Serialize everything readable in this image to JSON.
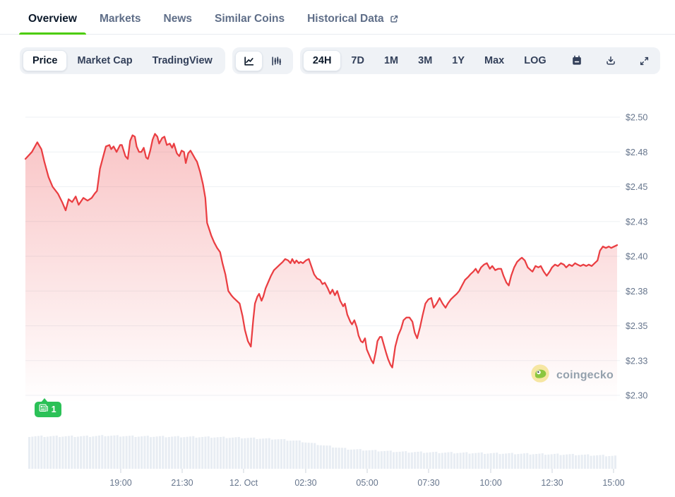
{
  "tabs": {
    "items": [
      {
        "label": "Overview",
        "active": true,
        "external": false
      },
      {
        "label": "Markets",
        "active": false,
        "external": false
      },
      {
        "label": "News",
        "active": false,
        "external": false
      },
      {
        "label": "Similar Coins",
        "active": false,
        "external": false
      },
      {
        "label": "Historical Data",
        "active": false,
        "external": true
      }
    ],
    "active_underline_color": "#4bcc00"
  },
  "toolbar": {
    "metric_buttons": [
      {
        "label": "Price",
        "active": true
      },
      {
        "label": "Market Cap",
        "active": false
      },
      {
        "label": "TradingView",
        "active": false
      }
    ],
    "chart_type_buttons": [
      {
        "icon": "line-chart-icon",
        "active": true
      },
      {
        "icon": "candlestick-chart-icon",
        "active": false
      }
    ],
    "range_buttons": [
      {
        "label": "24H",
        "active": true
      },
      {
        "label": "7D",
        "active": false
      },
      {
        "label": "1M",
        "active": false
      },
      {
        "label": "3M",
        "active": false
      },
      {
        "label": "1Y",
        "active": false
      },
      {
        "label": "Max",
        "active": false
      },
      {
        "label": "LOG",
        "active": false
      }
    ],
    "icon_buttons": [
      {
        "icon": "calendar-icon"
      },
      {
        "icon": "download-icon"
      },
      {
        "icon": "expand-icon"
      }
    ]
  },
  "watermark": {
    "label": "coingecko"
  },
  "chart_data": {
    "type": "line",
    "title": "",
    "grid": true,
    "legend": "none",
    "line_color": "#ea3e42",
    "area_fill_top": "rgba(234,62,66,0.30)",
    "area_fill_bottom": "rgba(234,62,66,0)",
    "ylim": [
      2.3,
      2.5
    ],
    "y_axis": {
      "side": "right",
      "tick_labels": [
        "$2.50",
        "$2.48",
        "$2.45",
        "$2.43",
        "$2.40",
        "$2.38",
        "$2.35",
        "$2.33",
        "$2.30"
      ],
      "tick_values": [
        2.5,
        2.475,
        2.45,
        2.425,
        2.4,
        2.375,
        2.35,
        2.325,
        2.3
      ]
    },
    "x_axis": {
      "ticks": [
        {
          "label": "19:00",
          "t": 0.1611
        },
        {
          "label": "21:30",
          "t": 0.2649
        },
        {
          "label": "12. Oct",
          "t": 0.3687
        },
        {
          "label": "02:30",
          "t": 0.4737
        },
        {
          "label": "05:00",
          "t": 0.5776
        },
        {
          "label": "07:30",
          "t": 0.6814
        },
        {
          "label": "10:00",
          "t": 0.7864
        },
        {
          "label": "12:30",
          "t": 0.8902
        },
        {
          "label": "15:00",
          "t": 0.994
        }
      ]
    },
    "annotations": [
      {
        "type": "news-flag",
        "label": "1",
        "t": 0.033
      }
    ],
    "series": [
      {
        "name": "Price (USD)",
        "points": [
          [
            0,
            2.47
          ],
          [
            0.011,
            2.475
          ],
          [
            0.02,
            2.482
          ],
          [
            0.027,
            2.477
          ],
          [
            0.032,
            2.468
          ],
          [
            0.039,
            2.457
          ],
          [
            0.046,
            2.45
          ],
          [
            0.055,
            2.445
          ],
          [
            0.062,
            2.439
          ],
          [
            0.068,
            2.433
          ],
          [
            0.073,
            2.441
          ],
          [
            0.079,
            2.439
          ],
          [
            0.085,
            2.443
          ],
          [
            0.09,
            2.437
          ],
          [
            0.098,
            2.442
          ],
          [
            0.105,
            2.44
          ],
          [
            0.112,
            2.442
          ],
          [
            0.117,
            2.445
          ],
          [
            0.121,
            2.447
          ],
          [
            0.126,
            2.463
          ],
          [
            0.131,
            2.471
          ],
          [
            0.136,
            2.479
          ],
          [
            0.142,
            2.48
          ],
          [
            0.145,
            2.477
          ],
          [
            0.149,
            2.479
          ],
          [
            0.154,
            2.475
          ],
          [
            0.16,
            2.48
          ],
          [
            0.163,
            2.48
          ],
          [
            0.169,
            2.472
          ],
          [
            0.173,
            2.47
          ],
          [
            0.177,
            2.483
          ],
          [
            0.181,
            2.487
          ],
          [
            0.185,
            2.486
          ],
          [
            0.188,
            2.479
          ],
          [
            0.192,
            2.475
          ],
          [
            0.196,
            2.475
          ],
          [
            0.2,
            2.478
          ],
          [
            0.204,
            2.471
          ],
          [
            0.207,
            2.47
          ],
          [
            0.211,
            2.476
          ],
          [
            0.215,
            2.484
          ],
          [
            0.219,
            2.488
          ],
          [
            0.223,
            2.486
          ],
          [
            0.226,
            2.481
          ],
          [
            0.231,
            2.485
          ],
          [
            0.235,
            2.486
          ],
          [
            0.239,
            2.48
          ],
          [
            0.244,
            2.481
          ],
          [
            0.248,
            2.478
          ],
          [
            0.251,
            2.481
          ],
          [
            0.256,
            2.474
          ],
          [
            0.26,
            2.472
          ],
          [
            0.264,
            2.476
          ],
          [
            0.268,
            2.475
          ],
          [
            0.271,
            2.467
          ],
          [
            0.275,
            2.474
          ],
          [
            0.279,
            2.476
          ],
          [
            0.283,
            2.473
          ],
          [
            0.287,
            2.47
          ],
          [
            0.29,
            2.468
          ],
          [
            0.295,
            2.461
          ],
          [
            0.3,
            2.452
          ],
          [
            0.304,
            2.442
          ],
          [
            0.307,
            2.424
          ],
          [
            0.311,
            2.419
          ],
          [
            0.314,
            2.415
          ],
          [
            0.319,
            2.41
          ],
          [
            0.324,
            2.406
          ],
          [
            0.329,
            2.403
          ],
          [
            0.333,
            2.395
          ],
          [
            0.338,
            2.387
          ],
          [
            0.343,
            2.375
          ],
          [
            0.348,
            2.372
          ],
          [
            0.352,
            2.37
          ],
          [
            0.357,
            2.368
          ],
          [
            0.362,
            2.366
          ],
          [
            0.367,
            2.357
          ],
          [
            0.371,
            2.347
          ],
          [
            0.376,
            2.339
          ],
          [
            0.381,
            2.335
          ],
          [
            0.385,
            2.354
          ],
          [
            0.388,
            2.366
          ],
          [
            0.392,
            2.371
          ],
          [
            0.395,
            2.373
          ],
          [
            0.399,
            2.368
          ],
          [
            0.402,
            2.371
          ],
          [
            0.406,
            2.377
          ],
          [
            0.411,
            2.382
          ],
          [
            0.415,
            2.386
          ],
          [
            0.42,
            2.39
          ],
          [
            0.425,
            2.392
          ],
          [
            0.43,
            2.394
          ],
          [
            0.435,
            2.396
          ],
          [
            0.439,
            2.398
          ],
          [
            0.444,
            2.397
          ],
          [
            0.448,
            2.395
          ],
          [
            0.451,
            2.398
          ],
          [
            0.455,
            2.395
          ],
          [
            0.458,
            2.397
          ],
          [
            0.462,
            2.395
          ],
          [
            0.465,
            2.396
          ],
          [
            0.469,
            2.395
          ],
          [
            0.474,
            2.397
          ],
          [
            0.479,
            2.398
          ],
          [
            0.483,
            2.393
          ],
          [
            0.488,
            2.387
          ],
          [
            0.493,
            2.384
          ],
          [
            0.498,
            2.383
          ],
          [
            0.502,
            2.38
          ],
          [
            0.506,
            2.381
          ],
          [
            0.511,
            2.377
          ],
          [
            0.515,
            2.373
          ],
          [
            0.519,
            2.376
          ],
          [
            0.523,
            2.372
          ],
          [
            0.527,
            2.375
          ],
          [
            0.532,
            2.368
          ],
          [
            0.537,
            2.364
          ],
          [
            0.54,
            2.366
          ],
          [
            0.544,
            2.358
          ],
          [
            0.549,
            2.353
          ],
          [
            0.552,
            2.351
          ],
          [
            0.556,
            2.354
          ],
          [
            0.56,
            2.349
          ],
          [
            0.563,
            2.343
          ],
          [
            0.567,
            2.339
          ],
          [
            0.57,
            2.338
          ],
          [
            0.574,
            2.341
          ],
          [
            0.577,
            2.333
          ],
          [
            0.581,
            2.329
          ],
          [
            0.585,
            2.325
          ],
          [
            0.588,
            2.323
          ],
          [
            0.592,
            2.331
          ],
          [
            0.595,
            2.339
          ],
          [
            0.599,
            2.342
          ],
          [
            0.602,
            2.342
          ],
          [
            0.606,
            2.336
          ],
          [
            0.61,
            2.33
          ],
          [
            0.613,
            2.326
          ],
          [
            0.617,
            2.322
          ],
          [
            0.62,
            2.32
          ],
          [
            0.625,
            2.335
          ],
          [
            0.63,
            2.343
          ],
          [
            0.635,
            2.348
          ],
          [
            0.639,
            2.354
          ],
          [
            0.644,
            2.356
          ],
          [
            0.649,
            2.356
          ],
          [
            0.654,
            2.353
          ],
          [
            0.658,
            2.345
          ],
          [
            0.662,
            2.341
          ],
          [
            0.667,
            2.349
          ],
          [
            0.671,
            2.357
          ],
          [
            0.676,
            2.366
          ],
          [
            0.681,
            2.369
          ],
          [
            0.686,
            2.37
          ],
          [
            0.69,
            2.363
          ],
          [
            0.695,
            2.366
          ],
          [
            0.7,
            2.37
          ],
          [
            0.705,
            2.366
          ],
          [
            0.71,
            2.363
          ],
          [
            0.714,
            2.366
          ],
          [
            0.719,
            2.369
          ],
          [
            0.724,
            2.371
          ],
          [
            0.729,
            2.373
          ],
          [
            0.733,
            2.375
          ],
          [
            0.738,
            2.379
          ],
          [
            0.743,
            2.383
          ],
          [
            0.748,
            2.385
          ],
          [
            0.752,
            2.387
          ],
          [
            0.757,
            2.389
          ],
          [
            0.761,
            2.391
          ],
          [
            0.765,
            2.388
          ],
          [
            0.77,
            2.392
          ],
          [
            0.775,
            2.394
          ],
          [
            0.78,
            2.395
          ],
          [
            0.785,
            2.391
          ],
          [
            0.789,
            2.393
          ],
          [
            0.794,
            2.39
          ],
          [
            0.799,
            2.391
          ],
          [
            0.804,
            2.391
          ],
          [
            0.808,
            2.386
          ],
          [
            0.813,
            2.381
          ],
          [
            0.817,
            2.379
          ],
          [
            0.821,
            2.386
          ],
          [
            0.826,
            2.392
          ],
          [
            0.831,
            2.396
          ],
          [
            0.836,
            2.398
          ],
          [
            0.839,
            2.399
          ],
          [
            0.844,
            2.397
          ],
          [
            0.849,
            2.392
          ],
          [
            0.854,
            2.39
          ],
          [
            0.857,
            2.389
          ],
          [
            0.862,
            2.393
          ],
          [
            0.867,
            2.392
          ],
          [
            0.871,
            2.393
          ],
          [
            0.876,
            2.389
          ],
          [
            0.881,
            2.386
          ],
          [
            0.886,
            2.389
          ],
          [
            0.89,
            2.392
          ],
          [
            0.895,
            2.394
          ],
          [
            0.9,
            2.393
          ],
          [
            0.905,
            2.395
          ],
          [
            0.91,
            2.394
          ],
          [
            0.914,
            2.392
          ],
          [
            0.919,
            2.394
          ],
          [
            0.924,
            2.393
          ],
          [
            0.929,
            2.395
          ],
          [
            0.933,
            2.394
          ],
          [
            0.938,
            2.393
          ],
          [
            0.943,
            2.394
          ],
          [
            0.948,
            2.393
          ],
          [
            0.952,
            2.394
          ],
          [
            0.957,
            2.393
          ],
          [
            0.962,
            2.395
          ],
          [
            0.967,
            2.397
          ],
          [
            0.971,
            2.404
          ],
          [
            0.976,
            2.407
          ],
          [
            0.981,
            2.406
          ],
          [
            0.986,
            2.407
          ],
          [
            0.99,
            2.406
          ],
          [
            0.995,
            2.407
          ],
          [
            1,
            2.408
          ]
        ]
      }
    ],
    "navigator": {
      "bar_color": "#e8edf3",
      "height_profile": [
        [
          0,
          46
        ],
        [
          0.1,
          46
        ],
        [
          0.13,
          47
        ],
        [
          0.18,
          46
        ],
        [
          0.3,
          45
        ],
        [
          0.36,
          44
        ],
        [
          0.42,
          42
        ],
        [
          0.46,
          39
        ],
        [
          0.5,
          33
        ],
        [
          0.54,
          28
        ],
        [
          0.58,
          26
        ],
        [
          0.63,
          24
        ],
        [
          0.7,
          23
        ],
        [
          0.78,
          22
        ],
        [
          0.86,
          21
        ],
        [
          0.93,
          20
        ],
        [
          1,
          18
        ]
      ]
    }
  }
}
